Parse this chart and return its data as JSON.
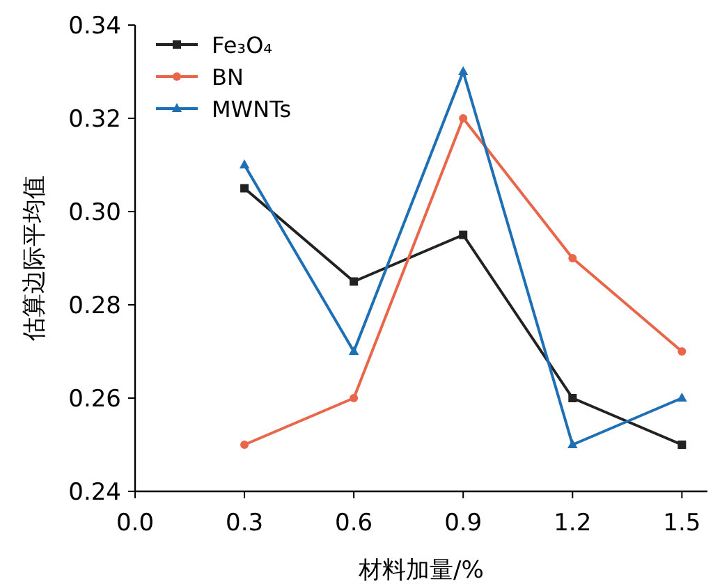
{
  "chart_data": {
    "type": "line",
    "xlabel": "材料加量/%",
    "ylabel": "估算边际平均值",
    "x": [
      0.3,
      0.6,
      0.9,
      1.2,
      1.5
    ],
    "xlim": [
      0,
      1.57
    ],
    "xticks": [
      {
        "value": 0,
        "label": "0.0"
      },
      0.3,
      0.6,
      0.9,
      1.2,
      1.5
    ],
    "ylim": [
      0.24,
      0.34
    ],
    "yticks": [
      0.24,
      {
        "value": 0.26,
        "label": "0.26"
      },
      0.28,
      {
        "value": 0.3,
        "label": "0.30"
      },
      0.32,
      0.34
    ],
    "series": [
      {
        "name": "Fe₃O₄",
        "color": "#222222",
        "marker": "square",
        "values": [
          0.305,
          0.285,
          0.295,
          0.26,
          0.25
        ]
      },
      {
        "name": "BN",
        "color": "#e8674a",
        "marker": "circle",
        "values": [
          0.25,
          0.26,
          0.32,
          0.29,
          0.27
        ]
      },
      {
        "name": "MWNTs",
        "color": "#1f6fb5",
        "marker": "triangle",
        "values": [
          0.31,
          0.27,
          0.33,
          0.25,
          0.26
        ]
      }
    ],
    "legend": "top left",
    "grid": false,
    "line_style": "solid"
  }
}
